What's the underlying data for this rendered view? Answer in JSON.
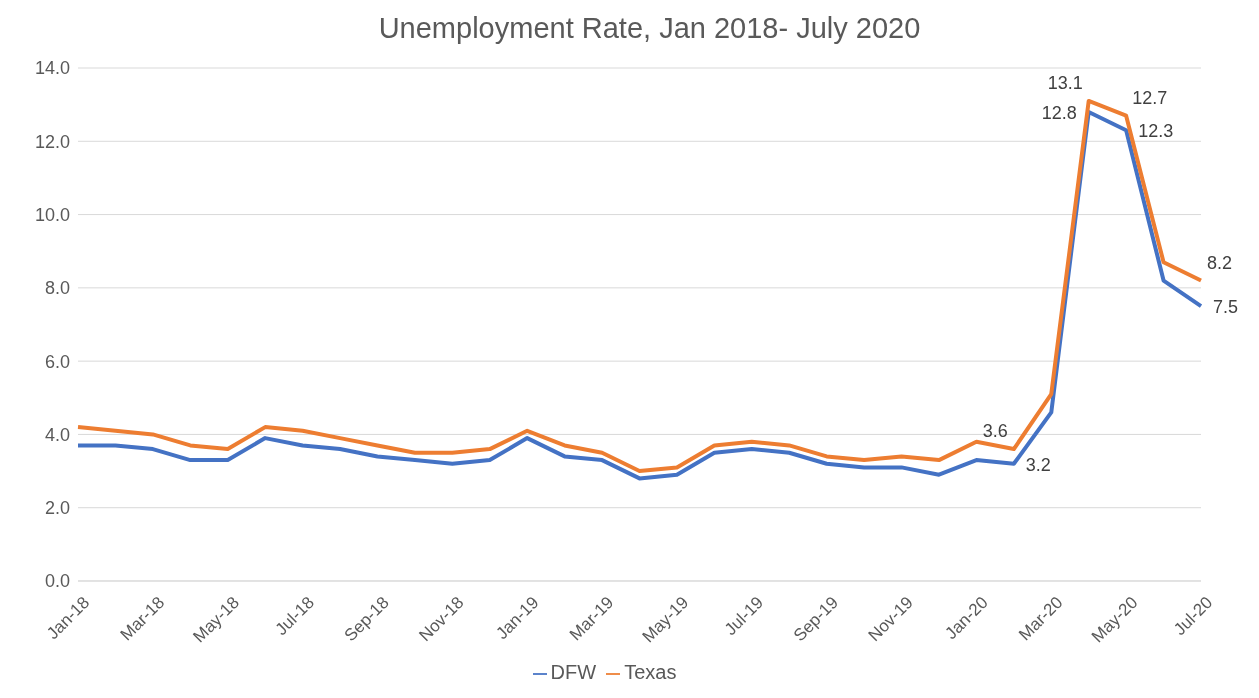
{
  "chart_data": {
    "type": "line",
    "title": "Unemployment Rate, Jan 2018- July 2020",
    "categories": [
      "Jan-18",
      null,
      "Mar-18",
      null,
      "May-18",
      null,
      "Jul-18",
      null,
      "Sep-18",
      null,
      "Nov-18",
      null,
      "Jan-19",
      null,
      "Mar-19",
      null,
      "May-19",
      null,
      "Jul-19",
      null,
      "Sep-19",
      null,
      "Nov-19",
      null,
      "Jan-20",
      null,
      "Mar-20",
      null,
      "May-20",
      null,
      "Jul-20"
    ],
    "series": [
      {
        "name": "DFW",
        "color": "#4472c4",
        "values": [
          3.7,
          3.7,
          3.6,
          3.3,
          3.3,
          3.9,
          3.7,
          3.6,
          3.4,
          3.3,
          3.2,
          3.3,
          3.9,
          3.4,
          3.3,
          2.8,
          2.9,
          3.5,
          3.6,
          3.5,
          3.2,
          3.1,
          3.1,
          2.9,
          3.3,
          3.2,
          4.6,
          12.8,
          12.3,
          8.2,
          7.5
        ],
        "value_labels": [
          null,
          null,
          null,
          null,
          null,
          null,
          null,
          null,
          null,
          null,
          null,
          null,
          null,
          null,
          null,
          null,
          null,
          null,
          null,
          null,
          null,
          null,
          null,
          null,
          null,
          "3.2",
          null,
          "12.8",
          "12.3",
          null,
          "7.5"
        ]
      },
      {
        "name": "Texas",
        "color": "#ed7d31",
        "values": [
          4.2,
          4.1,
          4.0,
          3.7,
          3.6,
          4.2,
          4.1,
          3.9,
          3.7,
          3.5,
          3.5,
          3.6,
          4.1,
          3.7,
          3.5,
          3.0,
          3.1,
          3.7,
          3.8,
          3.7,
          3.4,
          3.3,
          3.4,
          3.3,
          3.8,
          3.6,
          5.1,
          13.1,
          12.7,
          8.7,
          8.2
        ],
        "value_labels": [
          null,
          null,
          null,
          null,
          null,
          null,
          null,
          null,
          null,
          null,
          null,
          null,
          null,
          null,
          null,
          null,
          null,
          null,
          null,
          null,
          null,
          null,
          null,
          null,
          null,
          "3.6",
          null,
          "13.1",
          "12.7",
          null,
          "8.2"
        ]
      }
    ],
    "ylim": [
      0,
      14
    ],
    "yticks": [
      {
        "value": 0,
        "label": "0.0"
      },
      {
        "value": 2,
        "label": "2.0"
      },
      {
        "value": 4,
        "label": "4.0"
      },
      {
        "value": 6,
        "label": "6.0"
      },
      {
        "value": 8,
        "label": "8.0"
      },
      {
        "value": 10,
        "label": "10.0"
      },
      {
        "value": 12,
        "label": "12.0"
      },
      {
        "value": 14,
        "label": "14.0"
      }
    ],
    "grid": "y",
    "legend": "bottom",
    "marker": "none",
    "line_style": "solid"
  }
}
